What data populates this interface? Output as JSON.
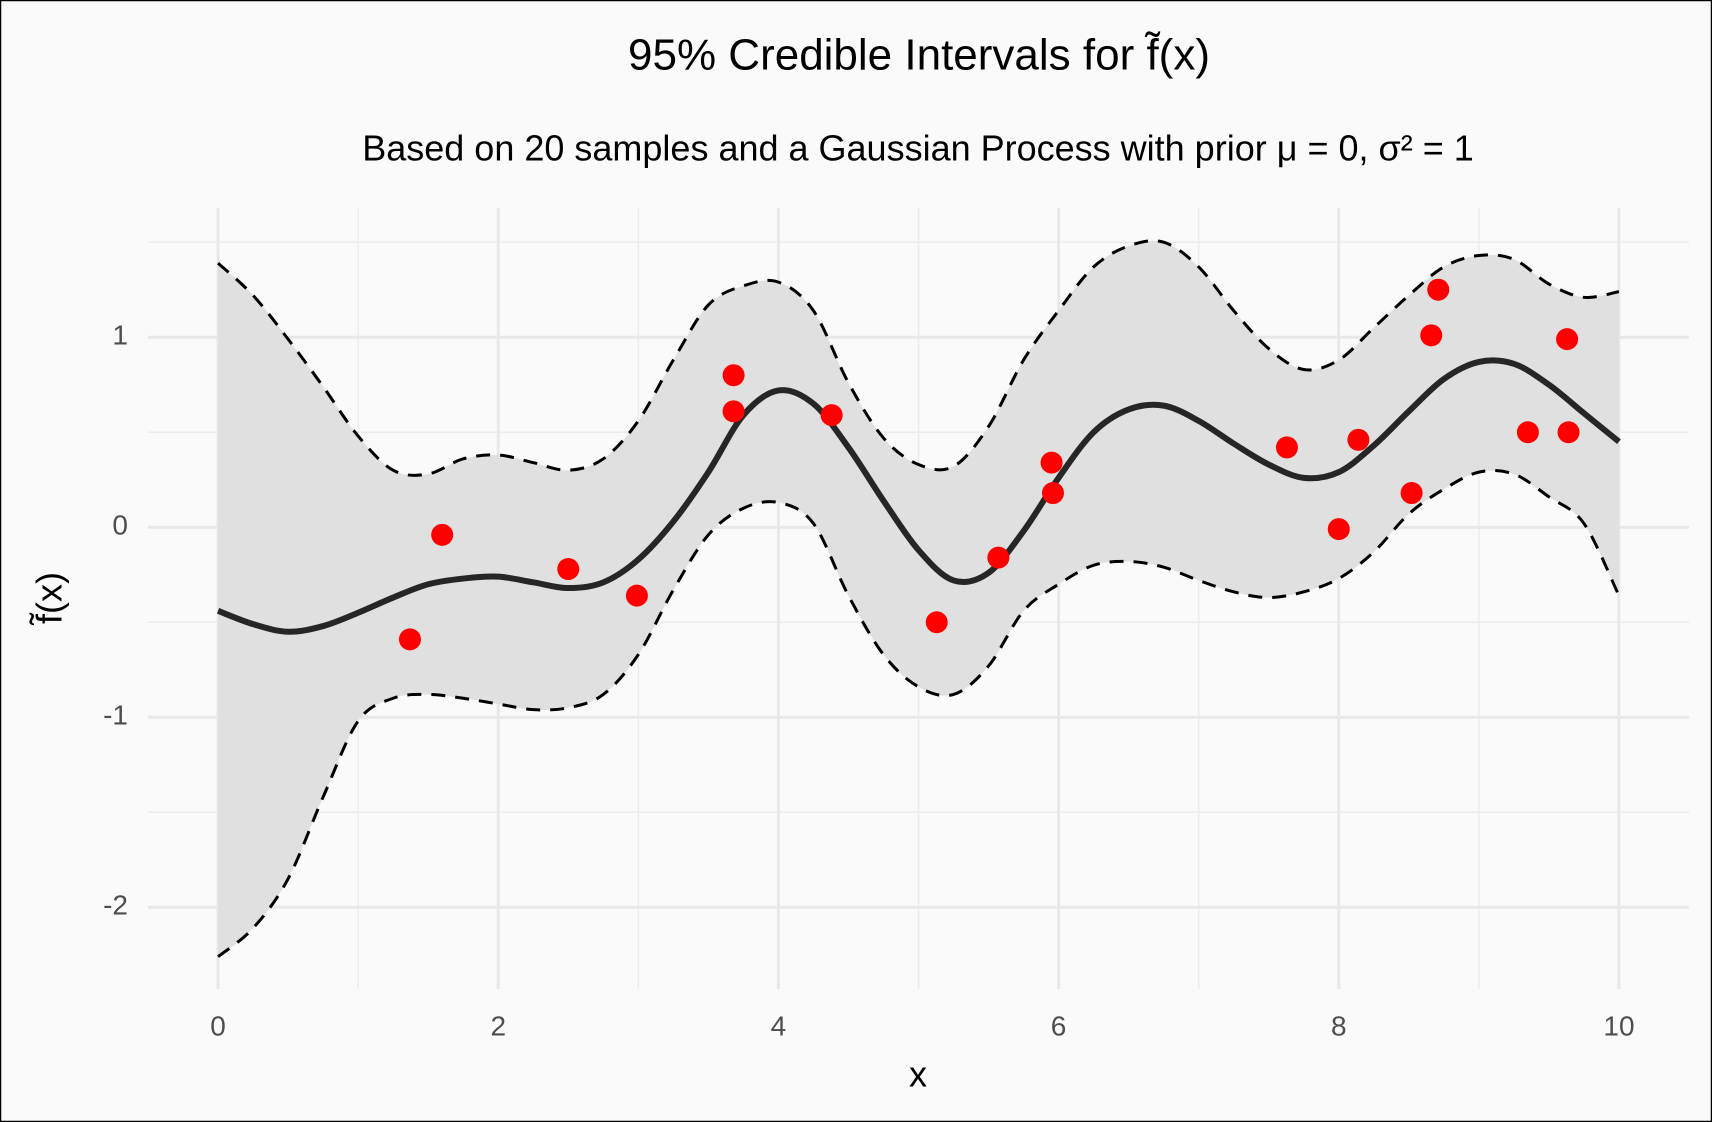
{
  "chart_data": {
    "type": "gp-band",
    "title": "95% Credible Intervals for f̃(x)",
    "subtitle": "Based on 20 samples and a Gaussian Process with prior μ = 0, σ² = 1",
    "x_label": "x",
    "y_label": "f̃(x)",
    "x": [
      0,
      0.25,
      0.5,
      0.75,
      1,
      1.25,
      1.5,
      1.75,
      2,
      2.25,
      2.5,
      2.75,
      3,
      3.25,
      3.5,
      3.75,
      4,
      4.25,
      4.5,
      4.75,
      5,
      5.25,
      5.5,
      5.75,
      6,
      6.25,
      6.5,
      6.75,
      7,
      7.25,
      7.5,
      7.75,
      8,
      8.25,
      8.5,
      8.75,
      9,
      9.25,
      9.5,
      9.75,
      10
    ],
    "mean": [
      -0.44,
      -0.51,
      -0.55,
      -0.52,
      -0.45,
      -0.37,
      -0.3,
      -0.27,
      -0.26,
      -0.29,
      -0.32,
      -0.29,
      -0.17,
      0.03,
      0.29,
      0.59,
      0.72,
      0.65,
      0.42,
      0.14,
      -0.12,
      -0.28,
      -0.24,
      -0.02,
      0.26,
      0.5,
      0.62,
      0.64,
      0.56,
      0.44,
      0.33,
      0.26,
      0.29,
      0.43,
      0.61,
      0.78,
      0.87,
      0.86,
      0.75,
      0.6,
      0.45
    ],
    "upper": [
      1.39,
      1.22,
      0.99,
      0.74,
      0.48,
      0.3,
      0.28,
      0.36,
      0.38,
      0.34,
      0.3,
      0.36,
      0.56,
      0.88,
      1.17,
      1.27,
      1.29,
      1.14,
      0.76,
      0.47,
      0.33,
      0.32,
      0.53,
      0.88,
      1.14,
      1.37,
      1.48,
      1.5,
      1.37,
      1.14,
      0.94,
      0.83,
      0.88,
      1.05,
      1.22,
      1.37,
      1.43,
      1.41,
      1.28,
      1.21,
      1.24
    ],
    "lower": [
      -2.26,
      -2.11,
      -1.85,
      -1.42,
      -1.02,
      -0.9,
      -0.88,
      -0.9,
      -0.93,
      -0.96,
      -0.95,
      -0.88,
      -0.67,
      -0.33,
      -0.04,
      0.1,
      0.13,
      0.02,
      -0.36,
      -0.67,
      -0.84,
      -0.88,
      -0.73,
      -0.44,
      -0.3,
      -0.2,
      -0.18,
      -0.21,
      -0.28,
      -0.34,
      -0.37,
      -0.34,
      -0.27,
      -0.13,
      0.07,
      0.2,
      0.29,
      0.28,
      0.16,
      0.02,
      -0.36
    ],
    "points": {
      "x": [
        1.37,
        1.6,
        2.5,
        2.99,
        3.68,
        3.68,
        4.38,
        5.13,
        5.57,
        5.95,
        5.96,
        7.63,
        8.0,
        8.14,
        8.52,
        8.66,
        8.71,
        9.35,
        9.63,
        9.64
      ],
      "y": [
        -0.59,
        -0.04,
        -0.22,
        -0.36,
        0.8,
        0.61,
        0.59,
        -0.5,
        -0.16,
        0.34,
        0.18,
        0.42,
        -0.01,
        0.46,
        0.18,
        1.01,
        1.25,
        0.5,
        0.99,
        0.5
      ]
    },
    "line_color": "#262626",
    "band_color": "#e0e0e0",
    "point_color": "#ff0000",
    "xlim": [
      -0.5,
      10.5
    ],
    "ylim": [
      -2.43,
      1.68
    ],
    "xticks": [
      0,
      2,
      4,
      6,
      8,
      10
    ],
    "yticks": [
      -2,
      -1,
      0,
      1
    ],
    "xminor": [
      1,
      3,
      5,
      7,
      9
    ],
    "yminor": [
      -1.5,
      -0.5,
      0.5,
      1.5
    ],
    "grid": true
  }
}
